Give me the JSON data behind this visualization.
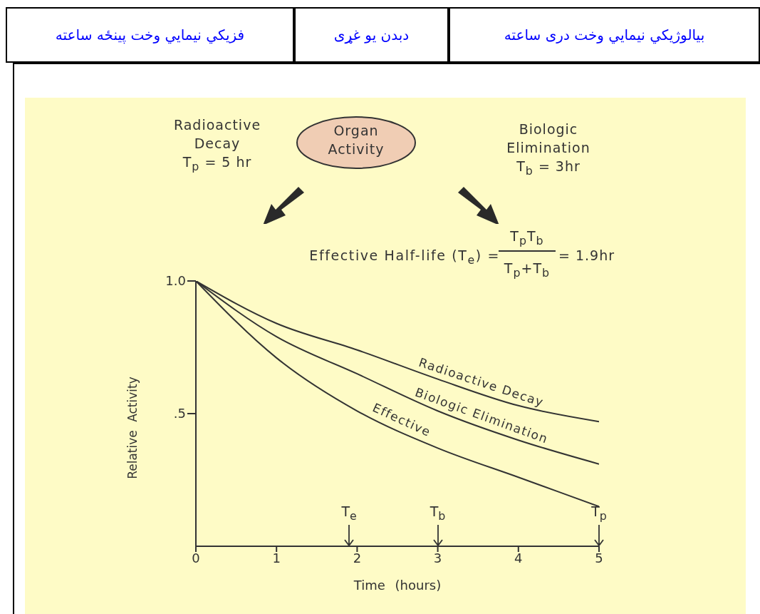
{
  "chart_data": {
    "type": "line",
    "xlabel": "Time (hours)",
    "ylabel": "Relative Activity",
    "x": [
      0,
      1,
      2,
      3,
      4,
      5
    ],
    "series": [
      {
        "name": "Radioactive Decay",
        "color": "#333333",
        "values": [
          1.0,
          0.84,
          0.74,
          0.63,
          0.53,
          0.47
        ]
      },
      {
        "name": "Biologic Elimination",
        "color": "#333333",
        "values": [
          1.0,
          0.79,
          0.65,
          0.51,
          0.4,
          0.31
        ]
      },
      {
        "name": "Effective",
        "color": "#333333",
        "values": [
          1.0,
          0.71,
          0.51,
          0.37,
          0.26,
          0.15
        ]
      }
    ],
    "xlim": [
      0,
      5
    ],
    "xticks": [
      0,
      1,
      2,
      3,
      4,
      5
    ],
    "ylim": [
      0,
      1
    ],
    "yticks": [
      {
        "value": 0.5,
        "label": ".5"
      },
      {
        "value": 1,
        "label": "1.0"
      }
    ],
    "grid": false,
    "legend": false,
    "marker": "none",
    "line_style": "solid",
    "annotations": [
      "فزیکي نیمايي وخت پینځه ساعته",
      "دبدن یو غړی",
      "بیالوژیکي نیمايي وخت دری ساعته",
      "Radioactive\nDecay\nT$_{p}$ = 5 hr",
      "Organ\nActivity",
      "Biologic\nElimination\nT$_{b}$ = 3hr",
      "Effective Half-life (T$_{e}$) =",
      "T$_{p}$T$_{b}$",
      "T$_{p}$+T$_{b}$",
      "= 1.9hr"
    ],
    "ref_lines": [
      {
        "axis": "x",
        "value": 1.9,
        "label": "T$_{e}$"
      },
      {
        "axis": "x",
        "value": 3,
        "label": "T$_{b}$"
      },
      {
        "axis": "x",
        "value": 5,
        "label": "T$_{p}$"
      }
    ]
  }
}
